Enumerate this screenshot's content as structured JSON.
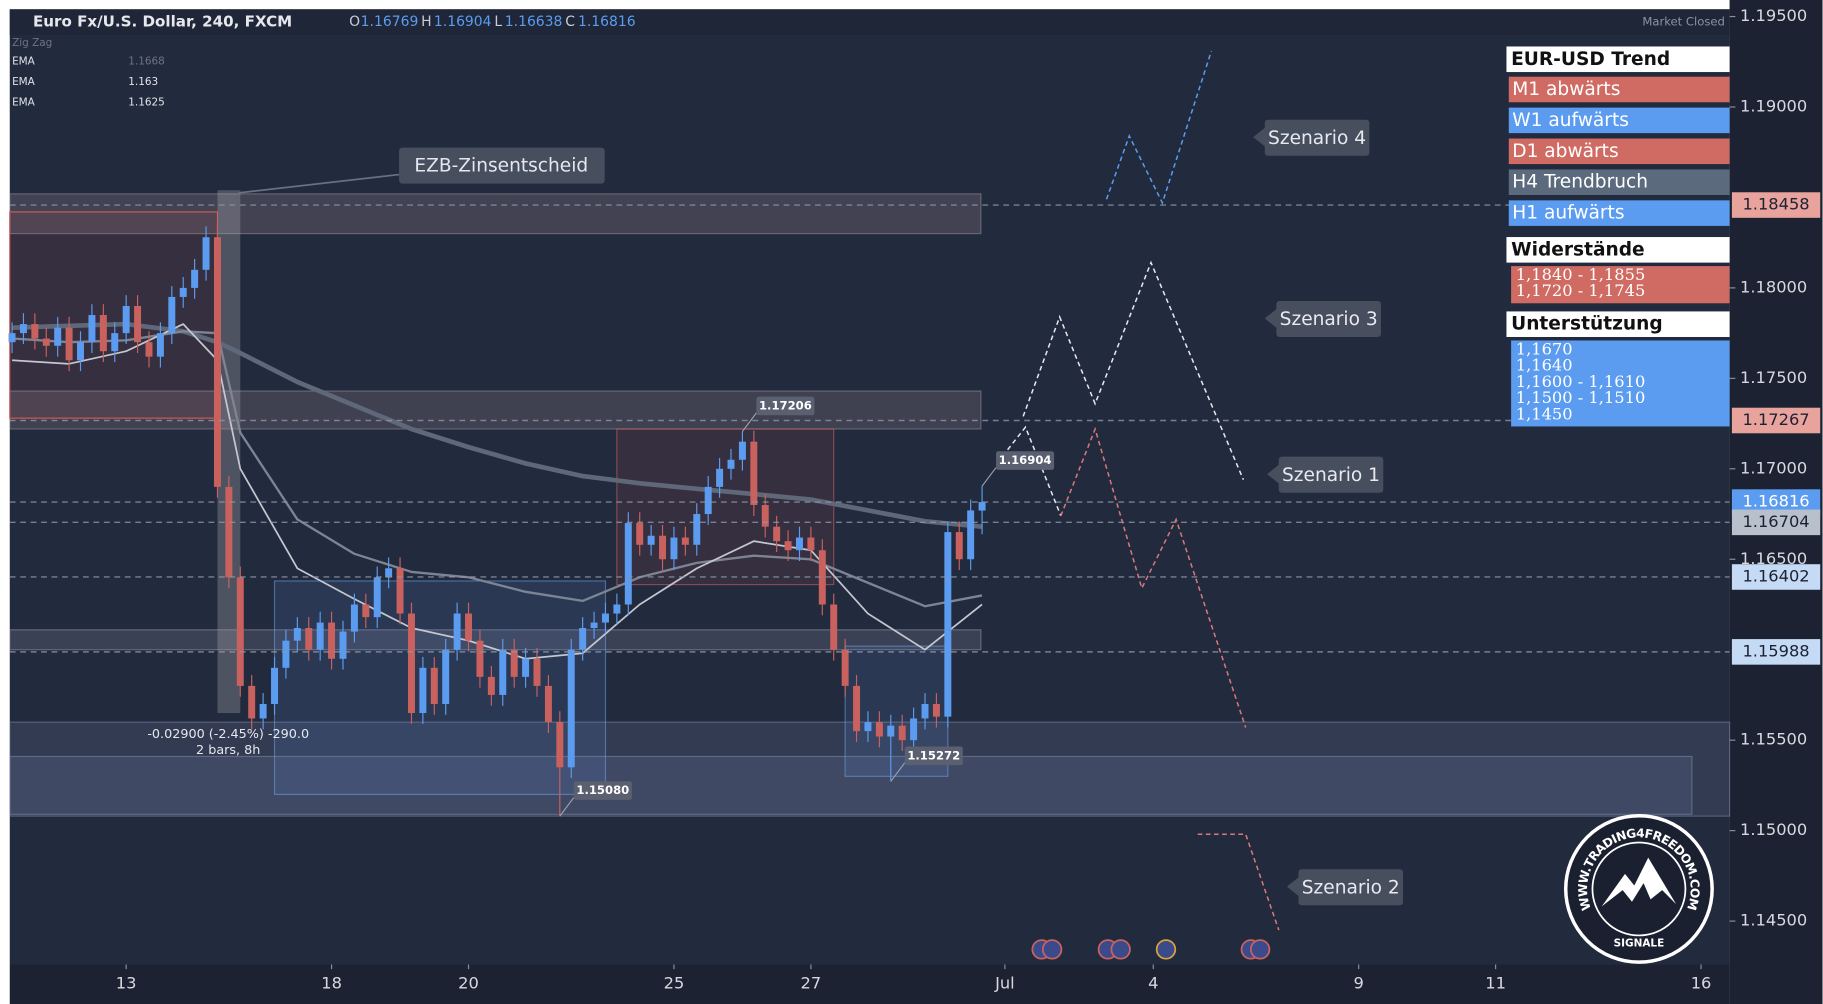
{
  "chart_data": {
    "type": "candlestick",
    "header": {
      "symbol": "Euro Fx/U.S. Dollar, 240, FXCM",
      "o": "O",
      "h": "H",
      "l": "L",
      "c": "C",
      "status": "Market Closed"
    },
    "indicator": "Zig Zag",
    "up_color": "#5b9cf0",
    "down_color": "#c9625f",
    "xlim": [
      -0.2,
      150.5
    ],
    "ylim": [
      1.1426,
      1.1954
    ],
    "xticks": [
      {
        "value": 10,
        "label": "13"
      },
      {
        "value": 28,
        "label": "18"
      },
      {
        "value": 40,
        "label": "20"
      },
      {
        "value": 58,
        "label": "25"
      },
      {
        "value": 70,
        "label": "27"
      },
      {
        "value": 87,
        "label": "Jul"
      },
      {
        "value": 100,
        "label": "4"
      },
      {
        "value": 118,
        "label": "9"
      },
      {
        "value": 130,
        "label": "11"
      },
      {
        "value": 148,
        "label": "16"
      }
    ],
    "yticks": [
      {
        "value": 1.195,
        "label": "1.19500"
      },
      {
        "value": 1.19,
        "label": "1.19000"
      },
      {
        "value": 1.18,
        "label": "1.18000"
      },
      {
        "value": 1.175,
        "label": "1.17500"
      },
      {
        "value": 1.17,
        "label": "1.17000"
      },
      {
        "value": 1.165,
        "label": "1.16500"
      },
      {
        "value": 1.155,
        "label": "1.15500"
      },
      {
        "value": 1.15,
        "label": "1.15000"
      },
      {
        "value": 1.145,
        "label": "1.14500"
      }
    ],
    "open": [
      1.177,
      1.1775,
      1.178,
      1.1772,
      1.1768,
      1.1778,
      1.176,
      1.177,
      1.1785,
      1.1765,
      1.1775,
      1.179,
      1.177,
      1.1762,
      1.1775,
      1.1795,
      1.18,
      1.181,
      1.1828,
      1.169,
      1.164,
      1.158,
      1.1562,
      1.157,
      1.159,
      1.1605,
      1.1612,
      1.16,
      1.1615,
      1.1595,
      1.161,
      1.1625,
      1.1618,
      1.164,
      1.1645,
      1.162,
      1.1565,
      1.159,
      1.157,
      1.16,
      1.162,
      1.1605,
      1.1585,
      1.1575,
      1.16,
      1.1585,
      1.1595,
      1.158,
      1.156,
      1.1535,
      1.16,
      1.1612,
      1.1615,
      1.162,
      1.1625,
      1.167,
      1.1658,
      1.1663,
      1.165,
      1.1662,
      1.1658,
      1.1675,
      1.169,
      1.17,
      1.1705,
      1.1715,
      1.168,
      1.1668,
      1.166,
      1.1655,
      1.1662,
      1.1655,
      1.1625,
      1.16,
      1.158,
      1.1555,
      1.156,
      1.1552,
      1.1558,
      1.155,
      1.1562,
      1.157,
      1.1563,
      1.1665,
      1.165,
      1.16769
    ],
    "high": [
      1.1781,
      1.1786,
      1.1786,
      1.1778,
      1.1784,
      1.1784,
      1.1776,
      1.1791,
      1.1791,
      1.1781,
      1.1796,
      1.1796,
      1.1776,
      1.1781,
      1.1801,
      1.1806,
      1.1816,
      1.1834,
      1.1834,
      1.1696,
      1.1646,
      1.1586,
      1.1576,
      1.1596,
      1.1611,
      1.1618,
      1.1618,
      1.1621,
      1.1621,
      1.1616,
      1.1631,
      1.1631,
      1.1646,
      1.1651,
      1.1651,
      1.1626,
      1.1596,
      1.1596,
      1.1606,
      1.1626,
      1.1626,
      1.1611,
      1.1591,
      1.1606,
      1.1606,
      1.1601,
      1.1601,
      1.1586,
      1.1566,
      1.1606,
      1.1618,
      1.1621,
      1.1626,
      1.1631,
      1.1676,
      1.1676,
      1.1669,
      1.1669,
      1.1668,
      1.1668,
      1.1681,
      1.1696,
      1.1706,
      1.1711,
      1.17206,
      1.1721,
      1.1686,
      1.1674,
      1.1666,
      1.1668,
      1.1668,
      1.1661,
      1.1631,
      1.1606,
      1.1586,
      1.1566,
      1.1566,
      1.1564,
      1.1564,
      1.1568,
      1.1576,
      1.1576,
      1.1671,
      1.1671,
      1.1683,
      1.16904
    ],
    "low": [
      1.1764,
      1.1769,
      1.1766,
      1.1762,
      1.1762,
      1.1754,
      1.1754,
      1.1764,
      1.1759,
      1.1759,
      1.1769,
      1.1764,
      1.1756,
      1.1756,
      1.1769,
      1.1789,
      1.1794,
      1.1804,
      1.1684,
      1.1634,
      1.1574,
      1.1556,
      1.1556,
      1.1564,
      1.1584,
      1.1599,
      1.1594,
      1.1594,
      1.1589,
      1.1589,
      1.1604,
      1.1612,
      1.1612,
      1.1634,
      1.1614,
      1.1559,
      1.1559,
      1.1564,
      1.1564,
      1.1594,
      1.1599,
      1.1579,
      1.1569,
      1.1569,
      1.1579,
      1.1579,
      1.1574,
      1.1554,
      1.1508,
      1.1529,
      1.1594,
      1.1606,
      1.1609,
      1.1614,
      1.1619,
      1.1652,
      1.1652,
      1.1644,
      1.1644,
      1.1652,
      1.1652,
      1.1669,
      1.1684,
      1.1694,
      1.1699,
      1.1674,
      1.1662,
      1.1654,
      1.1649,
      1.1649,
      1.1649,
      1.1619,
      1.1594,
      1.1574,
      1.1549,
      1.1549,
      1.1546,
      1.15272,
      1.1544,
      1.1544,
      1.1556,
      1.1557,
      1.1557,
      1.1644,
      1.1644,
      1.16638
    ],
    "close": [
      1.1775,
      1.178,
      1.1772,
      1.1768,
      1.1778,
      1.176,
      1.177,
      1.1785,
      1.1765,
      1.1775,
      1.179,
      1.177,
      1.1762,
      1.1775,
      1.1795,
      1.18,
      1.181,
      1.1828,
      1.169,
      1.164,
      1.158,
      1.1562,
      1.157,
      1.159,
      1.1605,
      1.1612,
      1.16,
      1.1615,
      1.1595,
      1.161,
      1.1625,
      1.1618,
      1.164,
      1.1645,
      1.162,
      1.1565,
      1.159,
      1.157,
      1.16,
      1.162,
      1.1605,
      1.1585,
      1.1575,
      1.16,
      1.1585,
      1.1595,
      1.158,
      1.156,
      1.1535,
      1.16,
      1.1612,
      1.1615,
      1.162,
      1.1625,
      1.167,
      1.1658,
      1.1663,
      1.165,
      1.1662,
      1.1658,
      1.1675,
      1.169,
      1.17,
      1.1705,
      1.1715,
      1.168,
      1.1668,
      1.166,
      1.1655,
      1.1662,
      1.1655,
      1.1625,
      1.16,
      1.158,
      1.1555,
      1.156,
      1.1552,
      1.1558,
      1.155,
      1.1562,
      1.157,
      1.1563,
      1.1665,
      1.165,
      1.1677,
      1.16816
    ],
    "emas": [
      {
        "name": "EMA",
        "color": "#5f6878",
        "width": 4,
        "x": [
          0,
          5,
          10,
          15,
          18,
          20,
          25,
          30,
          35,
          40,
          45,
          50,
          55,
          60,
          65,
          70,
          75,
          80,
          85
        ],
        "values": [
          1.1778,
          1.1779,
          1.178,
          1.1776,
          1.177,
          1.1764,
          1.1748,
          1.1735,
          1.1722,
          1.1712,
          1.1703,
          1.1696,
          1.1692,
          1.1689,
          1.1686,
          1.1683,
          1.1677,
          1.1671,
          1.1668
        ]
      },
      {
        "name": "EMA",
        "color": "#7d8594",
        "width": 2,
        "x": [
          0,
          5,
          10,
          15,
          18,
          20,
          25,
          30,
          35,
          40,
          45,
          50,
          55,
          60,
          65,
          70,
          75,
          80,
          85
        ],
        "values": [
          1.1772,
          1.177,
          1.1771,
          1.1776,
          1.1775,
          1.172,
          1.1672,
          1.1653,
          1.1643,
          1.164,
          1.1632,
          1.1627,
          1.164,
          1.1648,
          1.1652,
          1.165,
          1.1637,
          1.1624,
          1.163
        ]
      },
      {
        "name": "EMA",
        "color": "#c3c7cf",
        "width": 1.5,
        "x": [
          0,
          5,
          10,
          15,
          18,
          20,
          25,
          30,
          35,
          40,
          45,
          50,
          55,
          60,
          65,
          70,
          75,
          80,
          85
        ],
        "values": [
          1.176,
          1.1758,
          1.1765,
          1.178,
          1.176,
          1.17,
          1.1645,
          1.1628,
          1.1612,
          1.1605,
          1.1595,
          1.1598,
          1.1625,
          1.1645,
          1.166,
          1.1655,
          1.162,
          1.16,
          1.1625
        ]
      }
    ],
    "zones": [
      {
        "x": [
          -0.2,
          84.9
        ],
        "y": [
          1.1852,
          1.183
        ],
        "fill": "rgba(150,130,140,0.28)",
        "stroke": "rgba(200,190,200,0.35)"
      },
      {
        "x": [
          -0.2,
          84.9
        ],
        "y": [
          1.1743,
          1.1722
        ],
        "fill": "rgba(150,130,140,0.25)",
        "stroke": "rgba(200,190,200,0.35)"
      },
      {
        "x": [
          -0.2,
          84.9
        ],
        "y": [
          1.1611,
          1.16
        ],
        "fill": "rgba(150,150,170,0.22)",
        "stroke": "rgba(200,200,215,0.35)"
      },
      {
        "x": [
          -0.2,
          150.5
        ],
        "y": [
          1.156,
          1.1508
        ],
        "fill": "rgba(110,125,160,0.22)",
        "stroke": "rgba(170,180,210,0.35)"
      },
      {
        "x": [
          -0.2,
          147.2
        ],
        "y": [
          1.1541,
          1.1509
        ],
        "fill": "rgba(110,125,160,0.22)",
        "stroke": "rgba(170,180,210,0.35)"
      },
      {
        "x": [
          -0.2,
          18
        ],
        "y": [
          1.1842,
          1.1728
        ],
        "fill": "rgba(200,90,90,0.12)",
        "stroke": "#d05a55"
      },
      {
        "x": [
          23,
          52
        ],
        "y": [
          1.1638,
          1.152
        ],
        "fill": "rgba(90,140,220,0.14)",
        "stroke": "rgba(110,160,230,0.55)"
      },
      {
        "x": [
          53,
          72
        ],
        "y": [
          1.1722,
          1.1636
        ],
        "fill": "rgba(200,90,90,0.12)",
        "stroke": "rgba(210,100,100,0.55)"
      },
      {
        "x": [
          73,
          82
        ],
        "y": [
          1.1602,
          1.153
        ],
        "fill": "rgba(90,140,220,0.14)",
        "stroke": "rgba(110,160,230,0.55)"
      },
      {
        "x": [
          18,
          20
        ],
        "y": [
          1.1854,
          1.1565
        ],
        "fill": "rgba(160,160,170,0.35)",
        "stroke": "none"
      }
    ],
    "levels": [
      {
        "value": 1.18458,
        "fill": "#e7a39c",
        "text": "#1d2233"
      },
      {
        "value": 1.17267,
        "fill": "#e7a39c",
        "text": "#1d2233"
      },
      {
        "value": 1.16816,
        "fill": "#5b9cf0",
        "text": "#ffffff"
      },
      {
        "value": 1.16704,
        "fill": "#b8c0cc",
        "text": "#1d2233"
      },
      {
        "value": 1.16402,
        "fill": "#c5daf5",
        "text": "#1d2233"
      },
      {
        "value": 1.15988,
        "fill": "#c5daf5",
        "text": "#1d2233"
      }
    ],
    "price_labels": [
      {
        "x": 64,
        "value": 1.17206
      },
      {
        "x": 85,
        "value": 1.16904
      },
      {
        "x": 48,
        "value": 1.1508,
        "label": "1.15080"
      },
      {
        "x": 77,
        "value": 1.15272
      }
    ],
    "scenarios": [
      {
        "name": "Szenario 4",
        "color": "#5b9cf0",
        "x": [
          95.9,
          97.9,
          100.8,
          105.1
        ],
        "values": [
          1.1849,
          1.1884,
          1.1847,
          1.1931
        ]
      },
      {
        "name": "Szenario 3",
        "color": "#e8e8ee",
        "x": [
          88.6,
          91.8,
          94.9,
          99.8,
          107.9
        ],
        "values": [
          1.1729,
          1.1784,
          1.1736,
          1.1814,
          1.1694
        ]
      },
      {
        "name": "Szenario 1",
        "color": "#e8e8ee",
        "x": [
          86.8,
          88.8,
          91.9
        ],
        "values": [
          1.1707,
          1.1723,
          1.1674
        ]
      },
      {
        "name": "Szenario 2",
        "color": "#d9787a",
        "x": [
          91.9,
          94.9,
          99.0,
          102.0,
          108.1,
          null,
          103.9,
          108.1,
          111.0
        ],
        "values": [
          1.1674,
          1.1722,
          1.1634,
          1.1672,
          1.1557,
          null,
          1.1498,
          1.1498,
          1.1445
        ]
      }
    ],
    "annotation": "EZB-Zinsentscheid",
    "measure": {
      "text": "-0.02900 (-2.45%) -290.0",
      "sub": "2 bars, 8h"
    }
  },
  "trend_panel": {
    "title": "EUR-USD Trend",
    "rows": [
      {
        "text": "M1 abwärts",
        "color": "#cf6b63"
      },
      {
        "text": "W1 aufwärts",
        "color": "#5b9cf0"
      },
      {
        "text": "D1 abwärts",
        "color": "#cf6b63"
      },
      {
        "text": "H4 Trendbruch",
        "color": "#5c6a7d"
      },
      {
        "text": "H1 aufwärts",
        "color": "#5b9cf0"
      }
    ],
    "resistance_title": "Widerstände",
    "resistance": [
      "1,1840 - 1,1855",
      "1,1720 - 1,1745"
    ],
    "support_title": "Unterstützung",
    "support": [
      "1,1670",
      "1,1640",
      "1,1600 - 1,1610",
      "1,1500 - 1,1510",
      "1,1450"
    ]
  },
  "logo": {
    "url": "WWW.TRADING4FREEDOM.COM",
    "tag": "SIGNALE"
  }
}
